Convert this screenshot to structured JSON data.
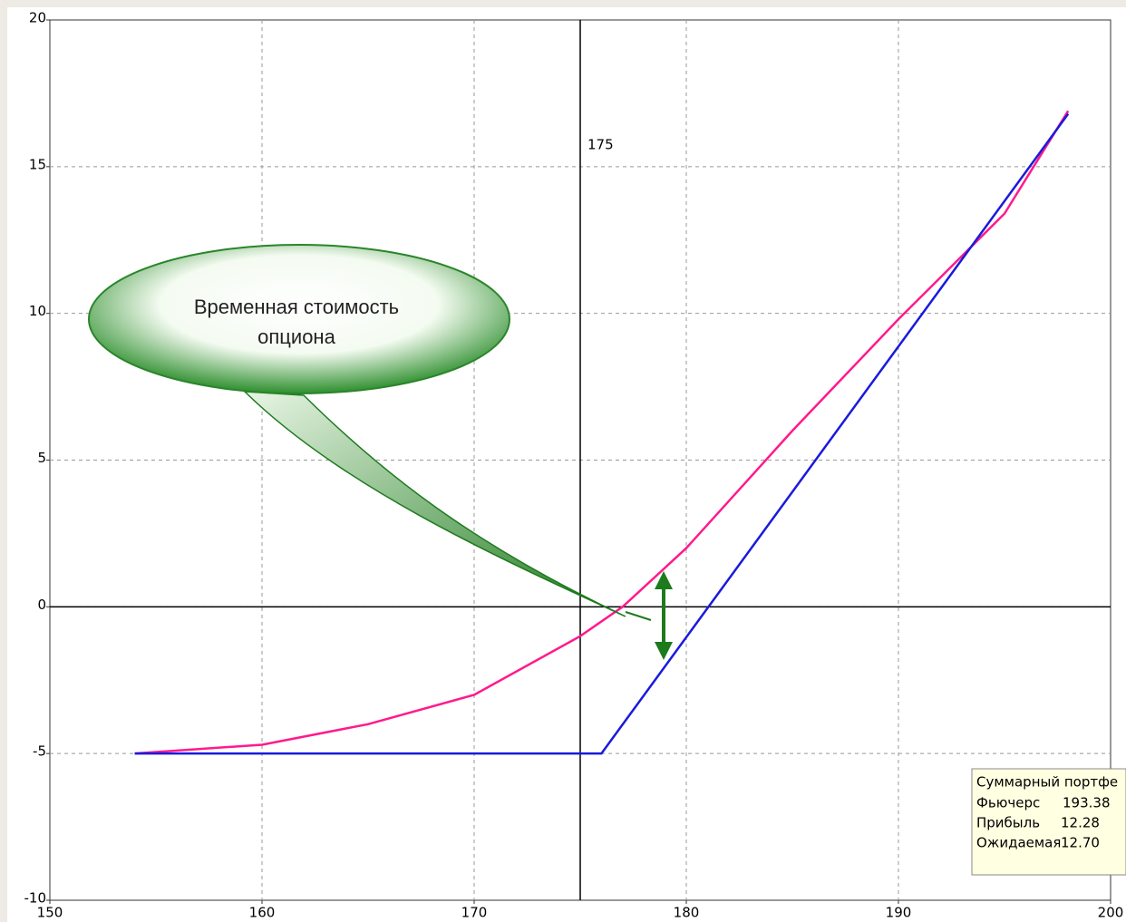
{
  "chart_data": {
    "type": "line",
    "xlim": [
      150,
      200
    ],
    "ylim": [
      -10,
      20
    ],
    "xticks": [
      150,
      160,
      170,
      180,
      190,
      200
    ],
    "yticks": [
      -10,
      -5,
      0,
      5,
      10,
      15,
      20
    ],
    "grid": true,
    "vline": 175,
    "hline": 0,
    "series": [
      {
        "color": "#ff1a8c",
        "x": [
          154,
          160,
          165,
          170,
          175,
          177,
          180,
          185,
          190,
          195,
          198
        ],
        "values": [
          -5,
          -4.7,
          -4.0,
          -3.0,
          -1.0,
          0,
          2.0,
          6.0,
          9.8,
          13.4,
          16.9
        ]
      },
      {
        "color": "#1a1adc",
        "x": [
          154,
          176,
          198
        ],
        "values": [
          -5,
          -5,
          16.8
        ]
      }
    ],
    "callout": [
      "Временная стоимость",
      "опциона"
    ],
    "info_box": {
      "title": "Суммарный портфе",
      "rows": [
        [
          "Фьючерс",
          "193.38"
        ],
        [
          "Прибыль",
          "12.28"
        ],
        [
          "Ожидаемая",
          "12.70"
        ]
      ]
    }
  }
}
